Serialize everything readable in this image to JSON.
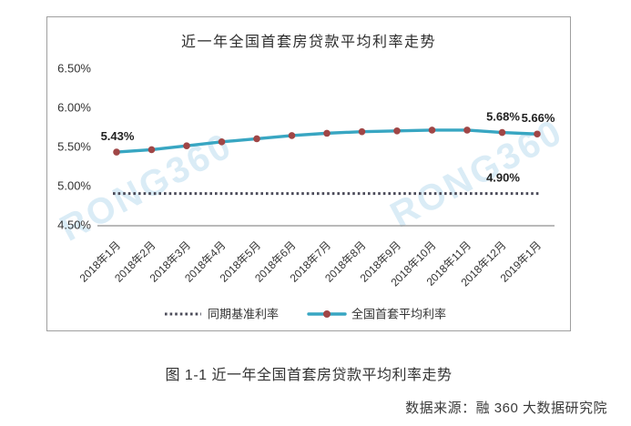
{
  "page": {
    "caption": "图 1-1 近一年全国首套房贷款平均利率走势",
    "source": "数据来源：融 360 大数据研究院",
    "watermark": "RONG360"
  },
  "chart_data": {
    "type": "line",
    "title": "近一年全国首套房贷款平均利率走势",
    "categories": [
      "2018年1月",
      "2018年2月",
      "2018年3月",
      "2018年4月",
      "2018年5月",
      "2018年6月",
      "2018年7月",
      "2018年8月",
      "2018年9月",
      "2018年10月",
      "2018年11月",
      "2018年12月",
      "2019年1月"
    ],
    "xlabel": "",
    "ylabel": "",
    "ylim": [
      4.5,
      6.5
    ],
    "yticks": [
      {
        "label": "6.50%",
        "value": 6.5
      },
      {
        "label": "6.00%",
        "value": 6.0
      },
      {
        "label": "5.50%",
        "value": 5.5
      },
      {
        "label": "5.00%",
        "value": 5.0
      },
      {
        "label": "4.50%",
        "value": 4.5
      }
    ],
    "grid": false,
    "legend_position": "bottom",
    "series": [
      {
        "name": "同期基准利率",
        "style": "dotted",
        "color": "#4b4b59",
        "value": 4.9
      },
      {
        "name": "全国首套平均利率",
        "style": "solid",
        "color": "#38a6c2",
        "marker_color": "#a04646",
        "values": [
          5.43,
          5.46,
          5.51,
          5.56,
          5.6,
          5.64,
          5.67,
          5.69,
          5.7,
          5.71,
          5.71,
          5.68,
          5.66
        ]
      }
    ],
    "annotations": [
      {
        "text": "5.43%",
        "x_index": 0,
        "y_value": 5.43
      },
      {
        "text": "5.68%",
        "x_index": 11,
        "y_value": 5.68
      },
      {
        "text": "5.66%",
        "x_index": 12,
        "y_value": 5.66
      },
      {
        "text": "4.90%",
        "x_index": 11,
        "y_value": 4.9
      }
    ]
  }
}
